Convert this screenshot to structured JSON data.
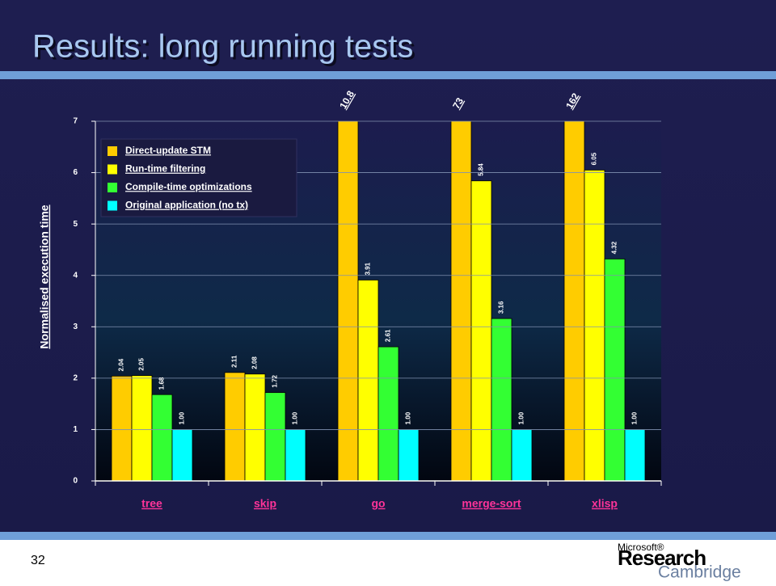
{
  "slide_title": "Results: long running tests",
  "slide_number": "32",
  "logo": {
    "brand": "Microsoft®",
    "line1": "Research",
    "line2": "Cambridge"
  },
  "chart_data": {
    "type": "bar",
    "categories": [
      "tree",
      "skip",
      "go",
      "merge-sort",
      "xlisp"
    ],
    "series": [
      {
        "name": "Direct-update STM",
        "color": "#ffcc00",
        "values": [
          2.04,
          2.11,
          10.8,
          73,
          162
        ],
        "value_labels": [
          "2.04",
          "2.11",
          "10.8",
          "73",
          "162"
        ]
      },
      {
        "name": "Run-time filtering",
        "color": "#ffff00",
        "values": [
          2.05,
          2.08,
          3.91,
          5.84,
          6.05
        ],
        "value_labels": [
          "2.05",
          "2.08",
          "3.91",
          "5.84",
          "6.05"
        ]
      },
      {
        "name": "Compile-time optimizations",
        "color": "#33ff33",
        "values": [
          1.68,
          1.72,
          2.61,
          3.16,
          4.32
        ],
        "value_labels": [
          "1.68",
          "1.72",
          "2.61",
          "3.16",
          "4.32"
        ]
      },
      {
        "name": "Original application (no tx)",
        "color": "#00ffff",
        "values": [
          1,
          1,
          1,
          1,
          1
        ],
        "value_labels": [
          "1.00",
          "1.00",
          "1.00",
          "1.00",
          "1.00"
        ]
      }
    ],
    "ylabel": "Normalised execution time",
    "ylim": [
      0,
      7
    ],
    "yticks": [
      0,
      1,
      2,
      3,
      4,
      5,
      6,
      7
    ],
    "grid": true,
    "legend": "upper left"
  }
}
